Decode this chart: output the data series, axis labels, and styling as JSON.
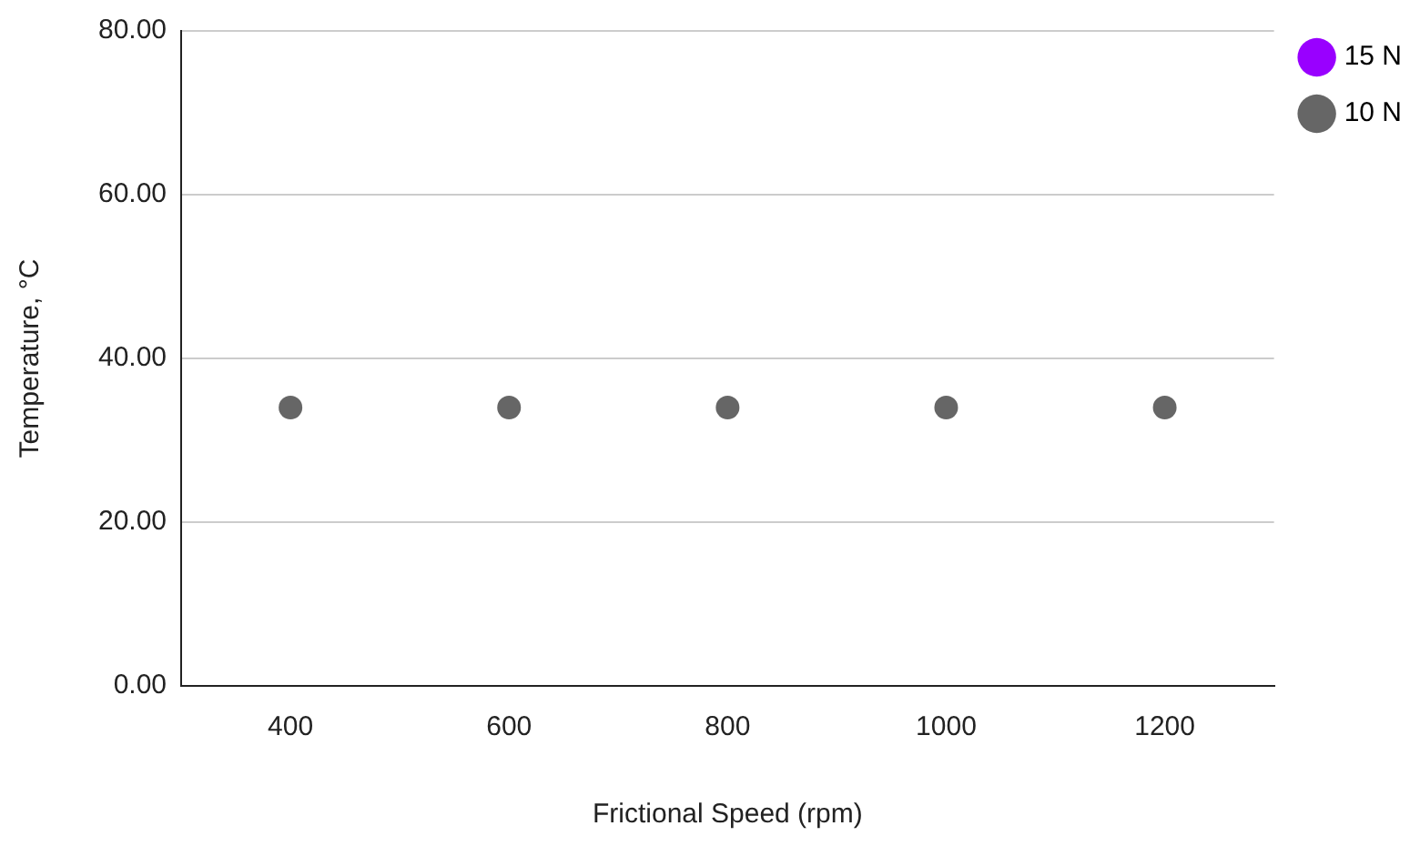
{
  "chart_data": {
    "type": "scatter",
    "xlabel": "Frictional Speed (rpm)",
    "ylabel": "Temperature, °C",
    "categories": [
      "400",
      "600",
      "800",
      "1000",
      "1200"
    ],
    "series": [
      {
        "name": "15 N",
        "color": "#9900ff",
        "values": [
          null,
          null,
          null,
          null,
          null
        ]
      },
      {
        "name": "10 N",
        "color": "#666666",
        "values": [
          34,
          34,
          34,
          34,
          34
        ]
      }
    ],
    "ylim": [
      0,
      80
    ],
    "yticks": [
      {
        "value": 0,
        "label": "0.00"
      },
      {
        "value": 20,
        "label": "20.00"
      },
      {
        "value": 40,
        "label": "40.00"
      },
      {
        "value": 60,
        "label": "60.00"
      },
      {
        "value": 80,
        "label": "80.00"
      }
    ],
    "grid": "y",
    "legend": "top right",
    "marker": "circle"
  }
}
